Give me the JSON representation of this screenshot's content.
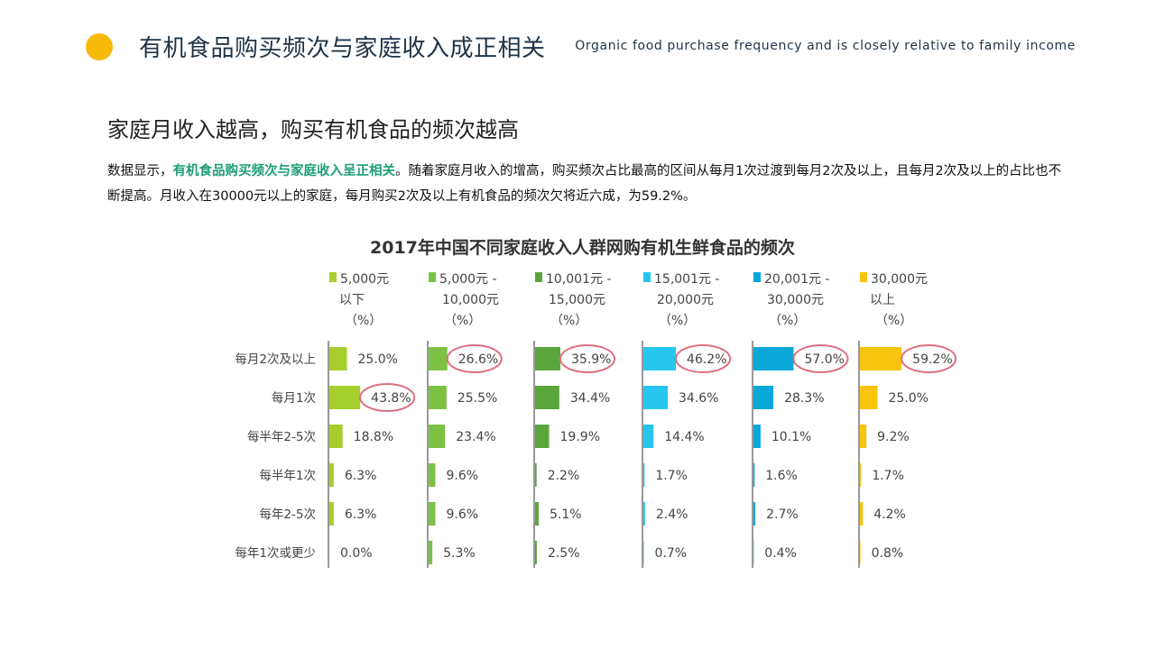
{
  "header": {
    "title": "有机食品购买频次与家庭收入成正相关",
    "subtitle": "Organic food purchase frequency and is closely relative to family income",
    "accent_color": "#f9b90a"
  },
  "section": {
    "heading": "家庭月收入越高，购买有机食品的频次越高",
    "desc_prefix": "数据显示，",
    "desc_highlight": "有机食品购买频次与家庭收入呈正相关",
    "desc_suffix": "。随着家庭月收入的增高，购买频次占比最高的区间从每月1次过渡到每月2次及以上，且每月2次及以上的占比也不断提高。月收入在30000元以上的家庭，每月购买2次及以上有机食品的频次欠将近六成，为59.2%。"
  },
  "chart_data": {
    "type": "bar",
    "orientation": "horizontal",
    "title": "2017年中国不同家庭收入人群网购有机生鲜食品的频次",
    "categories": [
      "每月2次及以上",
      "每月1次",
      "每半年2-5次",
      "每半年1次",
      "每年2-5次",
      "每年1次或更少"
    ],
    "unit": "%",
    "series": [
      {
        "name_lines": [
          "5,000元",
          "以下",
          "（%）"
        ],
        "color": "#a6cf2e",
        "values": [
          25.0,
          43.8,
          18.8,
          6.3,
          6.3,
          0.0
        ],
        "labels": [
          "25.0%",
          "43.8%",
          "18.8%",
          "6.3%",
          "6.3%",
          "0.0%"
        ],
        "circled": [
          1
        ]
      },
      {
        "name_lines": [
          "5,000元 -",
          "10,000元",
          "（%）"
        ],
        "color": "#7dc142",
        "values": [
          26.6,
          25.5,
          23.4,
          9.6,
          9.6,
          5.3
        ],
        "labels": [
          "26.6%",
          "25.5%",
          "23.4%",
          "9.6%",
          "9.6%",
          "5.3%"
        ],
        "circled": [
          0
        ]
      },
      {
        "name_lines": [
          "10,001元 -",
          "15,000元",
          "（%）"
        ],
        "color": "#5aa63c",
        "values": [
          35.9,
          34.4,
          19.9,
          2.2,
          5.1,
          2.5
        ],
        "labels": [
          "35.9%",
          "34.4%",
          "19.9%",
          "2.2%",
          "5.1%",
          "2.5%"
        ],
        "circled": [
          0
        ]
      },
      {
        "name_lines": [
          "15,001元 -",
          "20,000元",
          "（%）"
        ],
        "color": "#27c6ee",
        "values": [
          46.2,
          34.6,
          14.4,
          1.7,
          2.4,
          0.7
        ],
        "labels": [
          "46.2%",
          "34.6%",
          "14.4%",
          "1.7%",
          "2.4%",
          "0.7%"
        ],
        "circled": [
          0
        ]
      },
      {
        "name_lines": [
          "20,001元 -",
          "30,000元",
          "（%）"
        ],
        "color": "#0aa7d9",
        "values": [
          57.0,
          28.3,
          10.1,
          1.6,
          2.7,
          0.4
        ],
        "labels": [
          "57.0%",
          "28.3%",
          "10.1%",
          "1.6%",
          "2.7%",
          "0.4%"
        ],
        "circled": [
          0
        ]
      },
      {
        "name_lines": [
          "30,000元",
          "以上",
          "（%）"
        ],
        "color": "#f7c40e",
        "values": [
          59.2,
          25.0,
          9.2,
          1.7,
          4.2,
          0.8
        ],
        "labels": [
          "59.2%",
          "25.0%",
          "9.2%",
          "1.7%",
          "4.2%",
          "0.8%"
        ],
        "circled": [
          0
        ]
      }
    ],
    "highlight_color": "#e06f80",
    "axis_color": "#333333",
    "label_color": "#444444"
  }
}
